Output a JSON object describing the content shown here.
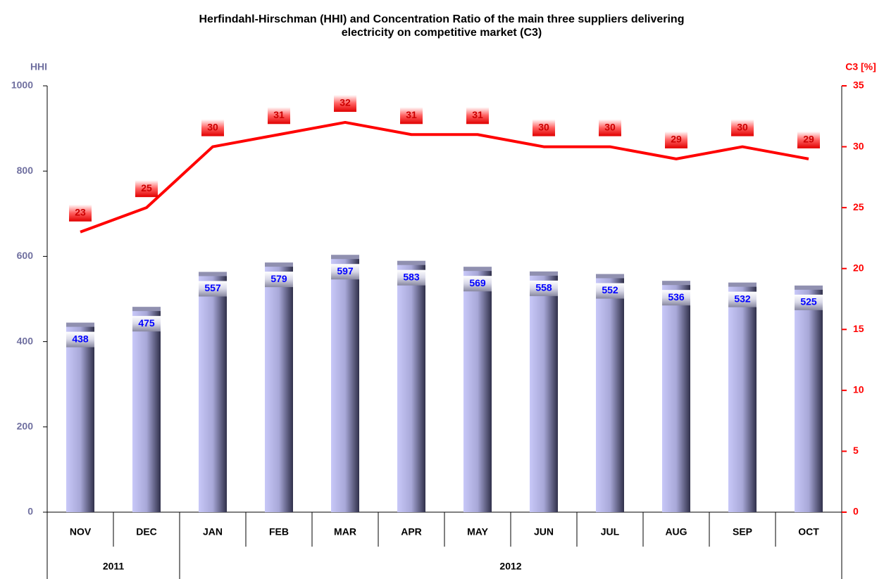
{
  "chart_data": {
    "type": "bar_line",
    "title": "Herfindahl-Hirschman (HHI) and Concentration Ratio of the main three suppliers delivering electricity on competitive market (C3)",
    "y_label": "HHI",
    "y2_label": "C3 [%]",
    "categories": [
      "NOV",
      "DEC",
      "JAN",
      "FEB",
      "MAR",
      "APR",
      "MAY",
      "JUN",
      "JUL",
      "AUG",
      "SEP",
      "OCT"
    ],
    "year_groups": [
      {
        "label": "2011",
        "span": 2
      },
      {
        "label": "2012",
        "span": 10
      }
    ],
    "series": [
      {
        "name": "HHI",
        "type": "bar",
        "color": "#c8c8f8",
        "values": [
          438,
          475,
          557,
          579,
          597,
          583,
          569,
          558,
          552,
          536,
          532,
          525
        ]
      },
      {
        "name": "C3",
        "type": "line",
        "axis": "y2",
        "color": "#ff0000",
        "values": [
          23,
          25,
          30,
          31,
          32,
          31,
          31,
          30,
          30,
          29,
          30,
          29
        ]
      }
    ],
    "ylim": [
      0,
      1000
    ],
    "yticks": [
      0,
      200,
      400,
      600,
      800,
      1000
    ],
    "y2lim": [
      0,
      35
    ],
    "y2ticks": [
      0,
      5,
      10,
      15,
      20,
      25,
      30,
      35
    ]
  }
}
